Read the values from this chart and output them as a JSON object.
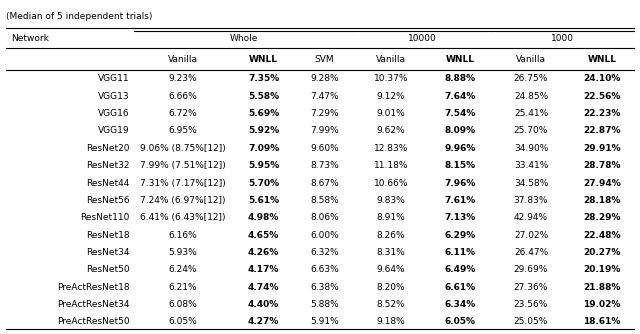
{
  "title": "(Median of 5 independent trials)",
  "networks": [
    "VGG11",
    "VGG13",
    "VGG16",
    "VGG19",
    "ResNet20",
    "ResNet32",
    "ResNet44",
    "ResNet56",
    "ResNet110",
    "ResNet18",
    "ResNet34",
    "ResNet50",
    "PreActResNet18",
    "PreActResNet34",
    "PreActResNet50"
  ],
  "rows": [
    [
      "9.23%",
      "7.35%",
      "9.28%",
      "10.37%",
      "8.88%",
      "26.75%",
      "24.10%"
    ],
    [
      "6.66%",
      "5.58%",
      "7.47%",
      "9.12%",
      "7.64%",
      "24.85%",
      "22.56%"
    ],
    [
      "6.72%",
      "5.69%",
      "7.29%",
      "9.01%",
      "7.54%",
      "25.41%",
      "22.23%"
    ],
    [
      "6.95%",
      "5.92%",
      "7.99%",
      "9.62%",
      "8.09%",
      "25.70%",
      "22.87%"
    ],
    [
      "9.06% (8.75%[12])",
      "7.09%",
      "9.60%",
      "12.83%",
      "9.96%",
      "34.90%",
      "29.91%"
    ],
    [
      "7.99% (7.51%[12])",
      "5.95%",
      "8.73%",
      "11.18%",
      "8.15%",
      "33.41%",
      "28.78%"
    ],
    [
      "7.31% (7.17%[12])",
      "5.70%",
      "8.67%",
      "10.66%",
      "7.96%",
      "34.58%",
      "27.94%"
    ],
    [
      "7.24% (6.97%[12])",
      "5.61%",
      "8.58%",
      "9.83%",
      "7.61%",
      "37.83%",
      "28.18%"
    ],
    [
      "6.41% (6.43%[12])",
      "4.98%",
      "8.06%",
      "8.91%",
      "7.13%",
      "42.94%",
      "28.29%"
    ],
    [
      "6.16%",
      "4.65%",
      "6.00%",
      "8.26%",
      "6.29%",
      "27.02%",
      "22.48%"
    ],
    [
      "5.93%",
      "4.26%",
      "6.32%",
      "8.31%",
      "6.11%",
      "26.47%",
      "20.27%"
    ],
    [
      "6.24%",
      "4.17%",
      "6.63%",
      "9.64%",
      "6.49%",
      "29.69%",
      "20.19%"
    ],
    [
      "6.21%",
      "4.74%",
      "6.38%",
      "8.20%",
      "6.61%",
      "27.36%",
      "21.88%"
    ],
    [
      "6.08%",
      "4.40%",
      "5.88%",
      "8.52%",
      "6.34%",
      "23.56%",
      "19.02%"
    ],
    [
      "6.05%",
      "4.27%",
      "5.91%",
      "9.18%",
      "6.05%",
      "25.05%",
      "18.61%"
    ]
  ],
  "col_header_labels": [
    "Vanilla",
    "WNLL",
    "SVM",
    "Vanilla",
    "WNLL",
    "Vanilla",
    "WNLL"
  ],
  "col_header_bold": [
    false,
    true,
    false,
    false,
    true,
    false,
    true
  ],
  "bold_cols": [
    1,
    4,
    6
  ],
  "col_widths_rel": [
    2.2,
    1.7,
    1.1,
    1.0,
    1.3,
    1.1,
    1.35,
    1.1
  ],
  "background_color": "#ffffff",
  "fontsize": 6.5
}
